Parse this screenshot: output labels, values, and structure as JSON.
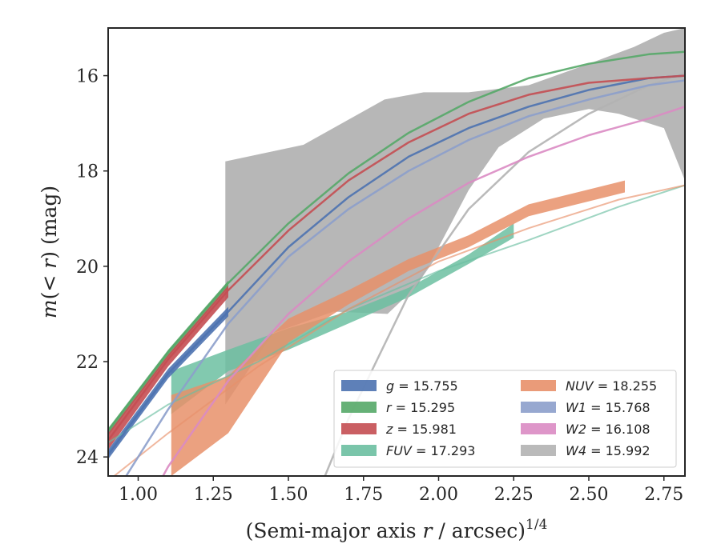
{
  "chart_data": {
    "type": "line",
    "xlabel": "(Semi-major axis r / arcsec)",
    "xlabel_pre": "(Semi-major axis ",
    "xlabel_var": "r",
    "xlabel_post": " / arcsec)",
    "xlabel_exp": "1/4",
    "ylabel_pre": "m",
    "ylabel_mid": "(< ",
    "ylabel_var": "r",
    "ylabel_post": ") (mag)",
    "xlim": [
      0.9,
      2.82
    ],
    "ylim": [
      24.4,
      15.0
    ],
    "y_inverted": true,
    "grid": false,
    "legend_position": "lower-right",
    "x_ticks": [
      1.0,
      1.25,
      1.5,
      1.75,
      2.0,
      2.25,
      2.5,
      2.75
    ],
    "x_tick_labels": [
      "1.00",
      "1.25",
      "1.50",
      "1.75",
      "2.00",
      "2.25",
      "2.50",
      "2.75"
    ],
    "y_ticks": [
      16,
      18,
      20,
      22,
      24
    ],
    "y_tick_labels": [
      "16",
      "18",
      "20",
      "22",
      "24"
    ],
    "series": [
      {
        "band": "g",
        "value": "15.755",
        "color": "#4c72b0",
        "line": {
          "x": [
            0.9,
            1.1,
            1.3,
            1.5,
            1.7,
            1.9,
            2.1,
            2.3,
            2.5,
            2.7,
            2.82
          ],
          "y": [
            23.95,
            22.25,
            20.95,
            19.6,
            18.55,
            17.7,
            17.1,
            16.65,
            16.3,
            16.05,
            16.0
          ]
        },
        "band_upper": {
          "x": [
            0.9,
            1.1,
            1.3
          ],
          "y": [
            23.85,
            22.15,
            20.85
          ]
        },
        "band_lower": {
          "x": [
            0.9,
            1.1,
            1.3
          ],
          "y": [
            24.05,
            22.35,
            21.05
          ]
        }
      },
      {
        "band": "r",
        "value": "15.295",
        "color": "#55a868",
        "line": {
          "x": [
            0.9,
            1.1,
            1.3,
            1.5,
            1.7,
            1.9,
            2.1,
            2.3,
            2.5,
            2.7,
            2.82
          ],
          "y": [
            23.45,
            21.8,
            20.35,
            19.1,
            18.05,
            17.2,
            16.55,
            16.05,
            15.75,
            15.55,
            15.5
          ]
        },
        "band_upper": {
          "x": [
            0.9,
            1.1,
            1.3
          ],
          "y": [
            23.4,
            21.75,
            20.3
          ]
        },
        "band_lower": {
          "x": [
            0.9,
            1.1,
            1.3
          ],
          "y": [
            23.55,
            21.9,
            20.45
          ]
        }
      },
      {
        "band": "z",
        "value": "15.981",
        "color": "#c44e52",
        "line": {
          "x": [
            0.9,
            1.1,
            1.3,
            1.5,
            1.7,
            1.9,
            2.1,
            2.3,
            2.5,
            2.7,
            2.82
          ],
          "y": [
            23.65,
            21.95,
            20.5,
            19.25,
            18.2,
            17.4,
            16.8,
            16.4,
            16.15,
            16.05,
            16.0
          ]
        },
        "band_upper": {
          "x": [
            0.9,
            1.1,
            1.3
          ],
          "y": [
            23.5,
            21.85,
            20.4
          ]
        },
        "band_lower": {
          "x": [
            0.9,
            1.1,
            1.3
          ],
          "y": [
            23.85,
            22.1,
            20.65
          ]
        }
      },
      {
        "band": "FUV",
        "value": "17.293",
        "color": "#6cbfa1",
        "line": {
          "x": [
            0.9,
            1.1,
            1.4,
            1.7,
            2.0,
            2.3,
            2.6,
            2.82
          ],
          "y": [
            23.7,
            22.9,
            22.0,
            20.9,
            20.1,
            19.45,
            18.75,
            18.3
          ]
        },
        "band_upper": {
          "x": [
            1.11,
            1.3,
            1.5,
            1.7,
            1.9,
            2.1,
            2.25
          ],
          "y": [
            22.2,
            21.75,
            21.3,
            20.95,
            20.45,
            19.75,
            19.1
          ]
        },
        "band_lower": {
          "x": [
            1.11,
            1.3,
            1.5,
            1.7,
            1.9,
            2.1,
            2.25
          ],
          "y": [
            23.1,
            22.2,
            21.75,
            21.2,
            20.65,
            19.95,
            19.4
          ]
        }
      },
      {
        "band": "NUV",
        "value": "18.255",
        "color": "#e8906a",
        "line": {
          "x": [
            0.9,
            1.1,
            1.4,
            1.7,
            2.0,
            2.3,
            2.6,
            2.82
          ],
          "y": [
            24.5,
            23.5,
            22.1,
            20.9,
            19.9,
            19.2,
            18.6,
            18.3
          ]
        },
        "band_upper": {
          "x": [
            1.11,
            1.3,
            1.5,
            1.7,
            1.9,
            2.1,
            2.3,
            2.62
          ],
          "y": [
            22.7,
            22.3,
            21.1,
            20.5,
            19.85,
            19.35,
            18.7,
            18.2
          ]
        },
        "band_lower": {
          "x": [
            1.11,
            1.3,
            1.5,
            1.7,
            1.9,
            2.1,
            2.3,
            2.62
          ],
          "y": [
            24.4,
            23.5,
            21.6,
            20.8,
            20.1,
            19.6,
            18.95,
            18.45
          ]
        }
      },
      {
        "band": "W1",
        "value": "15.768",
        "color": "#8c9fcb",
        "line": {
          "x": [
            0.9,
            1.1,
            1.3,
            1.5,
            1.7,
            1.9,
            2.1,
            2.3,
            2.5,
            2.7,
            2.82
          ],
          "y": [
            25.0,
            23.0,
            21.2,
            19.8,
            18.8,
            18.0,
            17.35,
            16.85,
            16.5,
            16.2,
            16.1
          ]
        }
      },
      {
        "band": "W2",
        "value": "16.108",
        "color": "#da8bc3",
        "line": {
          "x": [
            0.9,
            1.1,
            1.3,
            1.5,
            1.7,
            1.9,
            2.1,
            2.3,
            2.5,
            2.7,
            2.82
          ],
          "y": [
            26.5,
            24.2,
            22.4,
            21.0,
            19.9,
            19.0,
            18.25,
            17.7,
            17.25,
            16.9,
            16.65
          ]
        }
      },
      {
        "band": "W4",
        "value": "15.992",
        "color": "#b3b3b3",
        "line": {
          "x": [
            1.55,
            1.7,
            1.9,
            2.1,
            2.3,
            2.5,
            2.7,
            2.82
          ],
          "y": [
            25.5,
            23.2,
            20.6,
            18.8,
            17.6,
            16.8,
            16.2,
            15.95
          ]
        },
        "band_upper": {
          "x": [
            1.29,
            1.55,
            1.82,
            1.95,
            2.1,
            2.3,
            2.5,
            2.65,
            2.75,
            2.82
          ],
          "y": [
            17.8,
            17.45,
            16.5,
            16.35,
            16.35,
            16.2,
            15.75,
            15.4,
            15.1,
            15.0
          ]
        },
        "band_lower": {
          "x": [
            1.29,
            1.45,
            1.65,
            1.83,
            1.93,
            2.0,
            2.1,
            2.2,
            2.35,
            2.5,
            2.6,
            2.75,
            2.82
          ],
          "y": [
            22.9,
            21.4,
            20.95,
            21.0,
            20.4,
            19.6,
            18.4,
            17.5,
            16.9,
            16.7,
            16.8,
            17.1,
            18.2
          ]
        }
      }
    ]
  }
}
